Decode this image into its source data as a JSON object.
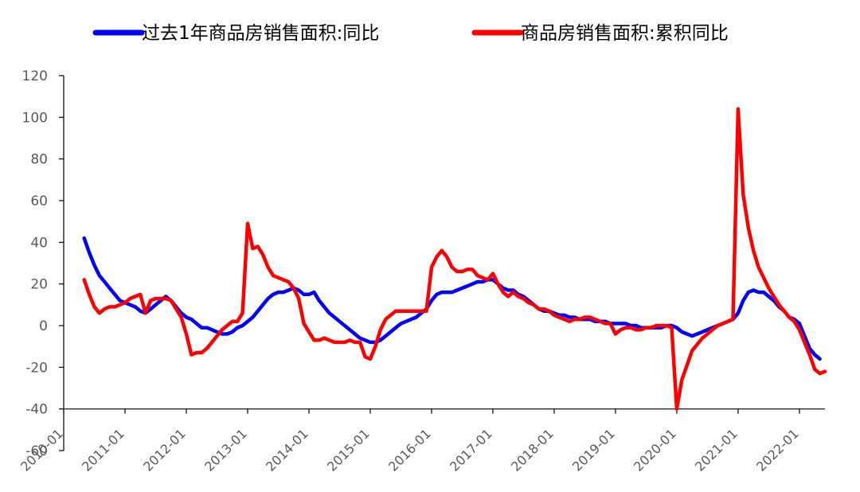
{
  "chart_data": {
    "type": "line",
    "title": "",
    "xlabel": "",
    "ylabel": "",
    "ylim": [
      -60,
      120
    ],
    "yticks": [
      -60,
      -40,
      -20,
      0,
      20,
      40,
      60,
      80,
      100,
      120
    ],
    "ytick_labels": [
      "-60",
      "-40",
      "-20",
      "0",
      "20",
      "40",
      "60",
      "80",
      "100",
      "120"
    ],
    "xlim": [
      "2010-01",
      "2022-06"
    ],
    "xticks": [
      "2010-01",
      "2011-01",
      "2012-01",
      "2013-01",
      "2014-01",
      "2015-01",
      "2016-01",
      "2017-01",
      "2018-01",
      "2019-01",
      "2020-01",
      "2021-01",
      "2022-01"
    ],
    "grid": false,
    "legend_position": "top",
    "series": [
      {
        "name": "过去1年商品房销售面积:同比",
        "color": "#0000FF",
        "points": [
          [
            "2010-05",
            42
          ],
          [
            "2010-06",
            35
          ],
          [
            "2010-07",
            29
          ],
          [
            "2010-08",
            24
          ],
          [
            "2010-09",
            21
          ],
          [
            "2010-10",
            18
          ],
          [
            "2010-11",
            15
          ],
          [
            "2010-12",
            12
          ],
          [
            "2011-01",
            11
          ],
          [
            "2011-02",
            10
          ],
          [
            "2011-03",
            9
          ],
          [
            "2011-04",
            7
          ],
          [
            "2011-05",
            6
          ],
          [
            "2011-06",
            8
          ],
          [
            "2011-07",
            10
          ],
          [
            "2011-08",
            12
          ],
          [
            "2011-09",
            14
          ],
          [
            "2011-10",
            12
          ],
          [
            "2011-11",
            9
          ],
          [
            "2011-12",
            6
          ],
          [
            "2012-01",
            4
          ],
          [
            "2012-02",
            3
          ],
          [
            "2012-03",
            1
          ],
          [
            "2012-04",
            -1
          ],
          [
            "2012-05",
            -1
          ],
          [
            "2012-06",
            -2
          ],
          [
            "2012-07",
            -3
          ],
          [
            "2012-08",
            -4
          ],
          [
            "2012-09",
            -4
          ],
          [
            "2012-10",
            -3
          ],
          [
            "2012-11",
            -1
          ],
          [
            "2012-12",
            0
          ],
          [
            "2013-01",
            2
          ],
          [
            "2013-02",
            4
          ],
          [
            "2013-03",
            7
          ],
          [
            "2013-04",
            10
          ],
          [
            "2013-05",
            13
          ],
          [
            "2013-06",
            15
          ],
          [
            "2013-07",
            16
          ],
          [
            "2013-08",
            16
          ],
          [
            "2013-09",
            17
          ],
          [
            "2013-10",
            18
          ],
          [
            "2013-11",
            17
          ],
          [
            "2013-12",
            15
          ],
          [
            "2014-01",
            15
          ],
          [
            "2014-02",
            16
          ],
          [
            "2014-03",
            12
          ],
          [
            "2014-04",
            9
          ],
          [
            "2014-05",
            6
          ],
          [
            "2014-06",
            4
          ],
          [
            "2014-07",
            2
          ],
          [
            "2014-08",
            0
          ],
          [
            "2014-09",
            -2
          ],
          [
            "2014-10",
            -4
          ],
          [
            "2014-11",
            -6
          ],
          [
            "2014-12",
            -7
          ],
          [
            "2015-01",
            -8
          ],
          [
            "2015-02",
            -8
          ],
          [
            "2015-03",
            -7
          ],
          [
            "2015-04",
            -5
          ],
          [
            "2015-05",
            -3
          ],
          [
            "2015-06",
            -1
          ],
          [
            "2015-07",
            1
          ],
          [
            "2015-08",
            2
          ],
          [
            "2015-09",
            3
          ],
          [
            "2015-10",
            4
          ],
          [
            "2015-11",
            6
          ],
          [
            "2015-12",
            8
          ],
          [
            "2016-01",
            12
          ],
          [
            "2016-02",
            15
          ],
          [
            "2016-03",
            16
          ],
          [
            "2016-04",
            16
          ],
          [
            "2016-05",
            16
          ],
          [
            "2016-06",
            17
          ],
          [
            "2016-07",
            18
          ],
          [
            "2016-08",
            19
          ],
          [
            "2016-09",
            20
          ],
          [
            "2016-10",
            21
          ],
          [
            "2016-11",
            21
          ],
          [
            "2016-12",
            22
          ],
          [
            "2017-01",
            22
          ],
          [
            "2017-02",
            20
          ],
          [
            "2017-03",
            18
          ],
          [
            "2017-04",
            17
          ],
          [
            "2017-05",
            17
          ],
          [
            "2017-06",
            15
          ],
          [
            "2017-07",
            14
          ],
          [
            "2017-08",
            12
          ],
          [
            "2017-09",
            10
          ],
          [
            "2017-10",
            8
          ],
          [
            "2017-11",
            7
          ],
          [
            "2017-12",
            7
          ],
          [
            "2018-01",
            6
          ],
          [
            "2018-02",
            5
          ],
          [
            "2018-03",
            5
          ],
          [
            "2018-04",
            4
          ],
          [
            "2018-05",
            4
          ],
          [
            "2018-06",
            3
          ],
          [
            "2018-07",
            3
          ],
          [
            "2018-08",
            3
          ],
          [
            "2018-09",
            2
          ],
          [
            "2018-10",
            2
          ],
          [
            "2018-11",
            2
          ],
          [
            "2018-12",
            1
          ],
          [
            "2019-01",
            1
          ],
          [
            "2019-02",
            1
          ],
          [
            "2019-03",
            1
          ],
          [
            "2019-04",
            0
          ],
          [
            "2019-05",
            0
          ],
          [
            "2019-06",
            -1
          ],
          [
            "2019-07",
            -1
          ],
          [
            "2019-08",
            -1
          ],
          [
            "2019-09",
            -1
          ],
          [
            "2019-10",
            -1
          ],
          [
            "2019-11",
            0
          ],
          [
            "2019-12",
            0
          ],
          [
            "2020-01",
            -1
          ],
          [
            "2020-02",
            -3
          ],
          [
            "2020-03",
            -4
          ],
          [
            "2020-04",
            -5
          ],
          [
            "2020-05",
            -4
          ],
          [
            "2020-06",
            -3
          ],
          [
            "2020-07",
            -2
          ],
          [
            "2020-08",
            -1
          ],
          [
            "2020-09",
            0
          ],
          [
            "2020-10",
            1
          ],
          [
            "2020-11",
            2
          ],
          [
            "2020-12",
            3
          ],
          [
            "2021-01",
            6
          ],
          [
            "2021-02",
            12
          ],
          [
            "2021-03",
            16
          ],
          [
            "2021-04",
            17
          ],
          [
            "2021-05",
            16
          ],
          [
            "2021-06",
            16
          ],
          [
            "2021-07",
            14
          ],
          [
            "2021-08",
            12
          ],
          [
            "2021-09",
            9
          ],
          [
            "2021-10",
            7
          ],
          [
            "2021-11",
            4
          ],
          [
            "2021-12",
            3
          ],
          [
            "2022-01",
            1
          ],
          [
            "2022-02",
            -5
          ],
          [
            "2022-03",
            -11
          ],
          [
            "2022-04",
            -14
          ],
          [
            "2022-05",
            -16
          ]
        ]
      },
      {
        "name": "商品房销售面积:累积同比",
        "color": "#FF0000",
        "points": [
          [
            "2010-05",
            22
          ],
          [
            "2010-06",
            15
          ],
          [
            "2010-07",
            9
          ],
          [
            "2010-08",
            6
          ],
          [
            "2010-09",
            8
          ],
          [
            "2010-10",
            9
          ],
          [
            "2010-11",
            9
          ],
          [
            "2010-12",
            10
          ],
          [
            "2011-01",
            11
          ],
          [
            "2011-02",
            13
          ],
          [
            "2011-03",
            14
          ],
          [
            "2011-04",
            15
          ],
          [
            "2011-05",
            6
          ],
          [
            "2011-06",
            12
          ],
          [
            "2011-07",
            13
          ],
          [
            "2011-08",
            13
          ],
          [
            "2011-09",
            13
          ],
          [
            "2011-10",
            12
          ],
          [
            "2011-11",
            8
          ],
          [
            "2011-12",
            4
          ],
          [
            "2012-01",
            -4
          ],
          [
            "2012-02",
            -14
          ],
          [
            "2012-03",
            -13
          ],
          [
            "2012-04",
            -13
          ],
          [
            "2012-05",
            -11
          ],
          [
            "2012-06",
            -8
          ],
          [
            "2012-07",
            -5
          ],
          [
            "2012-08",
            -2
          ],
          [
            "2012-09",
            0
          ],
          [
            "2012-10",
            2
          ],
          [
            "2012-11",
            2
          ],
          [
            "2012-12",
            6
          ],
          [
            "2013-01",
            49
          ],
          [
            "2013-02",
            37
          ],
          [
            "2013-03",
            38
          ],
          [
            "2013-04",
            34
          ],
          [
            "2013-05",
            28
          ],
          [
            "2013-06",
            24
          ],
          [
            "2013-07",
            23
          ],
          [
            "2013-08",
            22
          ],
          [
            "2013-09",
            21
          ],
          [
            "2013-10",
            18
          ],
          [
            "2013-11",
            13
          ],
          [
            "2013-12",
            1
          ],
          [
            "2014-01",
            -3
          ],
          [
            "2014-02",
            -7
          ],
          [
            "2014-03",
            -7
          ],
          [
            "2014-04",
            -6
          ],
          [
            "2014-05",
            -7
          ],
          [
            "2014-06",
            -8
          ],
          [
            "2014-07",
            -8
          ],
          [
            "2014-08",
            -8
          ],
          [
            "2014-09",
            -7
          ],
          [
            "2014-10",
            -8
          ],
          [
            "2014-11",
            -8
          ],
          [
            "2014-12",
            -15
          ],
          [
            "2015-01",
            -16
          ],
          [
            "2015-02",
            -10
          ],
          [
            "2015-03",
            -2
          ],
          [
            "2015-04",
            3
          ],
          [
            "2015-05",
            5
          ],
          [
            "2015-06",
            7
          ],
          [
            "2015-07",
            7
          ],
          [
            "2015-08",
            7
          ],
          [
            "2015-09",
            7
          ],
          [
            "2015-10",
            7
          ],
          [
            "2015-11",
            7
          ],
          [
            "2015-12",
            7
          ],
          [
            "2016-01",
            28
          ],
          [
            "2016-02",
            33
          ],
          [
            "2016-03",
            36
          ],
          [
            "2016-04",
            33
          ],
          [
            "2016-05",
            28
          ],
          [
            "2016-06",
            26
          ],
          [
            "2016-07",
            26
          ],
          [
            "2016-08",
            27
          ],
          [
            "2016-09",
            27
          ],
          [
            "2016-10",
            24
          ],
          [
            "2016-11",
            23
          ],
          [
            "2016-12",
            22
          ],
          [
            "2017-01",
            25
          ],
          [
            "2017-02",
            20
          ],
          [
            "2017-03",
            16
          ],
          [
            "2017-04",
            14
          ],
          [
            "2017-05",
            16
          ],
          [
            "2017-06",
            14
          ],
          [
            "2017-07",
            13
          ],
          [
            "2017-08",
            11
          ],
          [
            "2017-09",
            10
          ],
          [
            "2017-10",
            8
          ],
          [
            "2017-11",
            8
          ],
          [
            "2017-12",
            7
          ],
          [
            "2018-01",
            5
          ],
          [
            "2018-02",
            4
          ],
          [
            "2018-03",
            3
          ],
          [
            "2018-04",
            2
          ],
          [
            "2018-05",
            3
          ],
          [
            "2018-06",
            3
          ],
          [
            "2018-07",
            4
          ],
          [
            "2018-08",
            4
          ],
          [
            "2018-09",
            3
          ],
          [
            "2018-10",
            2
          ],
          [
            "2018-11",
            1
          ],
          [
            "2018-12",
            1
          ],
          [
            "2019-01",
            -4
          ],
          [
            "2019-02",
            -2
          ],
          [
            "2019-03",
            -1
          ],
          [
            "2019-04",
            -1
          ],
          [
            "2019-05",
            -2
          ],
          [
            "2019-06",
            -2
          ],
          [
            "2019-07",
            -1
          ],
          [
            "2019-08",
            -1
          ],
          [
            "2019-09",
            0
          ],
          [
            "2019-10",
            0
          ],
          [
            "2019-11",
            0
          ],
          [
            "2019-12",
            -1
          ],
          [
            "2020-01",
            -40
          ],
          [
            "2020-02",
            -26
          ],
          [
            "2020-03",
            -19
          ],
          [
            "2020-04",
            -12
          ],
          [
            "2020-05",
            -9
          ],
          [
            "2020-06",
            -6
          ],
          [
            "2020-07",
            -4
          ],
          [
            "2020-08",
            -2
          ],
          [
            "2020-09",
            0
          ],
          [
            "2020-10",
            1
          ],
          [
            "2020-11",
            2
          ],
          [
            "2020-12",
            3
          ],
          [
            "2021-01",
            104
          ],
          [
            "2021-02",
            63
          ],
          [
            "2021-03",
            47
          ],
          [
            "2021-04",
            36
          ],
          [
            "2021-05",
            28
          ],
          [
            "2021-06",
            23
          ],
          [
            "2021-07",
            18
          ],
          [
            "2021-08",
            14
          ],
          [
            "2021-09",
            10
          ],
          [
            "2021-10",
            7
          ],
          [
            "2021-11",
            4
          ],
          [
            "2021-12",
            2
          ],
          [
            "2022-01",
            -2
          ],
          [
            "2022-02",
            -8
          ],
          [
            "2022-03",
            -14
          ],
          [
            "2022-04",
            -21
          ],
          [
            "2022-05",
            -23
          ],
          [
            "2022-06",
            -22
          ]
        ]
      }
    ]
  }
}
